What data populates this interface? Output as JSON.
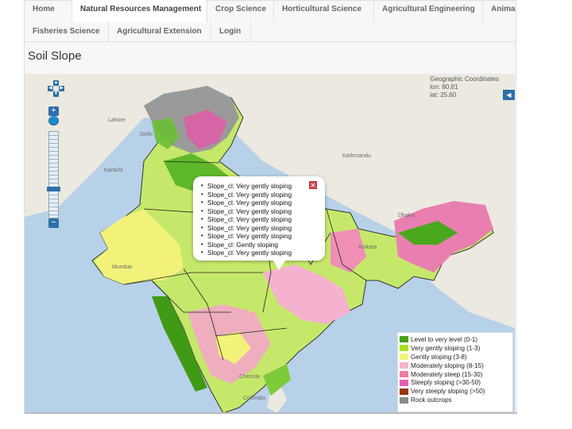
{
  "nav": {
    "row1": [
      "Home",
      "Natural Resources Management",
      "Crop Science",
      "Horticultural Science",
      "Agricultural Engineering",
      "Anima"
    ],
    "row2": [
      "Fisheries Science",
      "Agricultural Extension",
      "Login"
    ]
  },
  "page": {
    "title": "Soil Slope"
  },
  "map": {
    "coords_title": "Geographic Coordinates",
    "lon": "lon: 80.81",
    "lat": "lat: 25.60",
    "labels": [
      "Delhi",
      "Lahore",
      "Kathmandu",
      "Dhaka",
      "Mumbai",
      "Kolkata",
      "Chennai",
      "Colombo",
      "Karachi"
    ],
    "controls": {
      "zoom_in": "+",
      "zoom_out": "−",
      "world": "🌐",
      "side_toggle": "◀"
    }
  },
  "popup": {
    "items": [
      "Slope_cl: Very gently sloping",
      "Slope_cl: Very gently sloping",
      "Slope_cl: Very gently sloping",
      "Slope_cl: Very gently sloping",
      "Slope_cl: Very gently sloping",
      "Slope_cl: Very gently sloping",
      "Slope_cl: Very gently sloping",
      "Slope_cl: Gently sloping",
      "Slope_cl: Very gently sloping"
    ],
    "close": "✕"
  },
  "legend": {
    "items": [
      {
        "label": "Level to very level (0-1)",
        "color": "#44a318"
      },
      {
        "label": "Very gently sloping (1-3)",
        "color": "#a8e025"
      },
      {
        "label": "Gently sloping (3-8)",
        "color": "#f4f47a"
      },
      {
        "label": "Moderately sloping (8-15)",
        "color": "#f6b3cf"
      },
      {
        "label": "Moderately steep (15-30)",
        "color": "#ef7fa3"
      },
      {
        "label": "Steeply sloping (>30-50)",
        "color": "#e85fb0"
      },
      {
        "label": "Very steeply sloping (>50)",
        "color": "#9c3608"
      },
      {
        "label": "Rock outcrops",
        "color": "#8b8b8b"
      }
    ]
  },
  "colors": {
    "sea": "#b7d1e8",
    "land": "#ece9e0",
    "accent": "#2e6fa8"
  }
}
